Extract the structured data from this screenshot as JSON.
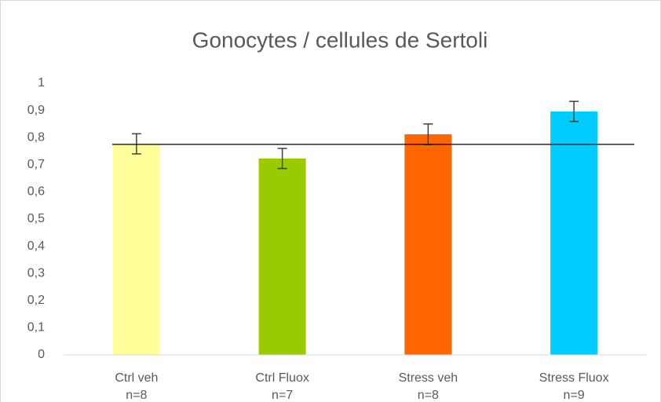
{
  "chart_data": {
    "type": "bar",
    "title": "Gonocytes / cellules de Sertoli",
    "categories": [
      "Ctrl veh",
      "Ctrl Fluox",
      "Stress veh",
      "Stress Fluox"
    ],
    "n_labels": [
      "n=8",
      "n=7",
      "n=8",
      "n=9"
    ],
    "values": [
      0.777,
      0.723,
      0.812,
      0.896
    ],
    "errors": [
      0.037,
      0.037,
      0.038,
      0.037
    ],
    "colors": [
      "#ffff99",
      "#99cc00",
      "#ff6600",
      "#00ccff"
    ],
    "reference_line": 0.775,
    "ylim": [
      0,
      1
    ],
    "yticks": [
      0,
      {
        "value": 0.1,
        "label": "0,1"
      },
      {
        "value": 0.2,
        "label": "0,2"
      },
      {
        "value": 0.3,
        "label": "0,3"
      },
      {
        "value": 0.4,
        "label": "0,4"
      },
      {
        "value": 0.5,
        "label": "0,5"
      },
      {
        "value": 0.6,
        "label": "0,6"
      },
      {
        "value": 0.7,
        "label": "0,7"
      },
      {
        "value": 0.8,
        "label": "0,8"
      },
      {
        "value": 0.9,
        "label": "0,9"
      },
      1
    ],
    "grid": false
  }
}
